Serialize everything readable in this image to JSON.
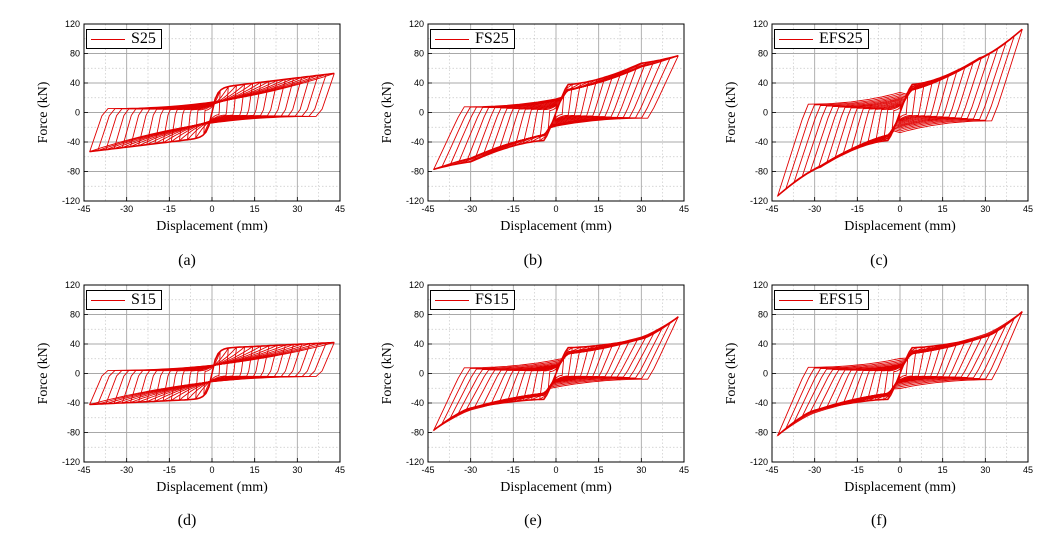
{
  "figure": {
    "curve_color": "#e00000",
    "grid_color": "#c8c8c8",
    "panels": [
      {
        "id": "a",
        "caption": "(a)",
        "legend": "S25"
      },
      {
        "id": "b",
        "caption": "(b)",
        "legend": "FS25"
      },
      {
        "id": "c",
        "caption": "(c)",
        "legend": "EFS25"
      },
      {
        "id": "d",
        "caption": "(d)",
        "legend": "S15"
      },
      {
        "id": "e",
        "caption": "(e)",
        "legend": "FS15"
      },
      {
        "id": "f",
        "caption": "(f)",
        "legend": "EFS15"
      }
    ]
  },
  "chart_data": [
    {
      "type": "line",
      "title": "",
      "xlabel": "Displacement (mm)",
      "ylabel": "Force (kN)",
      "xlim": [
        -45,
        45
      ],
      "ylim": [
        -120,
        120
      ],
      "xticks": [
        "-45",
        "-30",
        "-15",
        "0",
        "15",
        "30",
        "45"
      ],
      "yticks": [
        "120",
        "80",
        "40",
        "0",
        "-40",
        "-80",
        "-120"
      ],
      "grid": true,
      "legend_position": "top-left",
      "series": [
        {
          "name": "S25",
          "hysteresis": {
            "max_displacement": 43,
            "peak_force_pos": 53,
            "peak_force_neg": -53,
            "yield_force_at_peak_origin": 33,
            "shape": "bilinear"
          }
        }
      ]
    },
    {
      "type": "line",
      "title": "",
      "xlabel": "Displacement (mm)",
      "ylabel": "Force (kN)",
      "xlim": [
        -45,
        45
      ],
      "ylim": [
        -120,
        120
      ],
      "xticks": [
        "-45",
        "-30",
        "-15",
        "0",
        "15",
        "30",
        "45"
      ],
      "yticks": [
        "120",
        "80",
        "40",
        "0",
        "-40",
        "-80",
        "-120"
      ],
      "grid": true,
      "legend_position": "top-left",
      "series": [
        {
          "name": "FS25",
          "hysteresis": {
            "max_displacement": 43,
            "peak_force_pos": 77,
            "peak_force_neg": -77,
            "force_at_origin": 38,
            "hump_force": 67,
            "hump_displacement": 30,
            "shape": "double-hump"
          }
        }
      ]
    },
    {
      "type": "line",
      "title": "",
      "xlabel": "Displacement (mm)",
      "ylabel": "Force (kN)",
      "xlim": [
        -45,
        45
      ],
      "ylim": [
        -120,
        120
      ],
      "xticks": [
        "-45",
        "-30",
        "-15",
        "0",
        "15",
        "30",
        "45"
      ],
      "yticks": [
        "120",
        "80",
        "40",
        "0",
        "-40",
        "-80",
        "-120"
      ],
      "grid": true,
      "legend_position": "top-left",
      "series": [
        {
          "name": "EFS25",
          "hysteresis": {
            "max_displacement": 43,
            "peak_force_pos": 113,
            "peak_force_neg": -113,
            "force_at_origin": 38,
            "hump_force": 74,
            "hump_displacement": 28,
            "shape": "double-hump"
          }
        }
      ]
    },
    {
      "type": "line",
      "title": "",
      "xlabel": "Displacement (mm)",
      "ylabel": "Force (kN)",
      "xlim": [
        -45,
        45
      ],
      "ylim": [
        -120,
        120
      ],
      "xticks": [
        "-45",
        "-30",
        "-15",
        "0",
        "15",
        "30",
        "45"
      ],
      "yticks": [
        "120",
        "80",
        "40",
        "0",
        "-40",
        "-80",
        "-120"
      ],
      "grid": true,
      "legend_position": "top-left",
      "series": [
        {
          "name": "S15",
          "hysteresis": {
            "max_displacement": 43,
            "peak_force_pos": 42,
            "peak_force_neg": -42,
            "yield_force_at_peak_origin": 34,
            "shape": "bilinear"
          }
        }
      ]
    },
    {
      "type": "line",
      "title": "",
      "xlabel": "Displacement (mm)",
      "ylabel": "Force (kN)",
      "xlim": [
        -45,
        45
      ],
      "ylim": [
        -120,
        120
      ],
      "xticks": [
        "-45",
        "-30",
        "-15",
        "0",
        "15",
        "30",
        "45"
      ],
      "yticks": [
        "120",
        "80",
        "40",
        "0",
        "-40",
        "-80",
        "-120"
      ],
      "grid": true,
      "legend_position": "top-left",
      "series": [
        {
          "name": "FS15",
          "hysteresis": {
            "max_displacement": 43,
            "peak_force_pos": 77,
            "peak_force_neg": -77,
            "force_at_origin": 35,
            "hump_force": 47,
            "hump_displacement": 30,
            "shape": "double-hump"
          }
        }
      ]
    },
    {
      "type": "line",
      "title": "",
      "xlabel": "Displacement (mm)",
      "ylabel": "Force (kN)",
      "xlim": [
        -45,
        45
      ],
      "ylim": [
        -120,
        120
      ],
      "xticks": [
        "-45",
        "-30",
        "-15",
        "0",
        "15",
        "30",
        "45"
      ],
      "yticks": [
        "120",
        "80",
        "40",
        "0",
        "-40",
        "-80",
        "-120"
      ],
      "grid": true,
      "legend_position": "top-left",
      "series": [
        {
          "name": "EFS15",
          "hysteresis": {
            "max_displacement": 43,
            "peak_force_pos": 84,
            "peak_force_neg": -84,
            "force_at_origin": 35,
            "hump_force": 50,
            "hump_displacement": 30,
            "shape": "double-hump"
          }
        }
      ]
    }
  ]
}
